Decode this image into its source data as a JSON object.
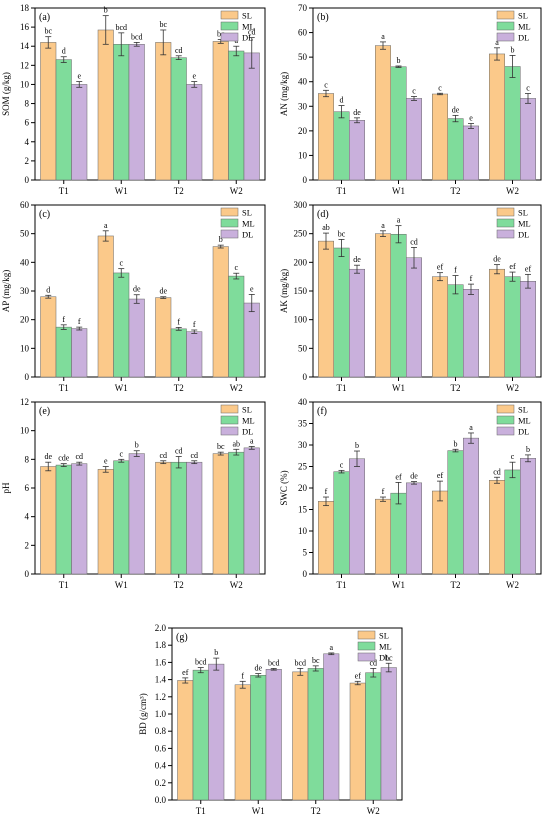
{
  "colors": {
    "SL": "#fbc98a",
    "ML": "#7fdc9b",
    "DL": "#c9b0dc"
  },
  "chart_data": [
    {
      "type": "bar",
      "panel": "(a)",
      "ylabel": "SOM (g/kg)",
      "ylim": [
        0,
        18
      ],
      "yticks": [
        0,
        2,
        4,
        6,
        8,
        10,
        12,
        14,
        16,
        18
      ],
      "categories": [
        "T1",
        "W1",
        "T2",
        "W2"
      ],
      "legend": "top-right",
      "series": [
        {
          "name": "SL",
          "values": [
            14.4,
            15.7,
            14.4,
            14.5
          ],
          "errors": [
            0.6,
            1.5,
            1.3,
            0.2
          ],
          "labels": [
            "bc",
            "b",
            "bc",
            "bc"
          ]
        },
        {
          "name": "ML",
          "values": [
            12.6,
            14.2,
            12.8,
            13.5
          ],
          "errors": [
            0.3,
            1.2,
            0.2,
            0.5
          ],
          "labels": [
            "d",
            "bcd",
            "cd",
            "a"
          ]
        },
        {
          "name": "DL",
          "values": [
            10.0,
            14.2,
            10.0,
            13.3
          ],
          "errors": [
            0.3,
            0.2,
            0.3,
            1.6
          ],
          "labels": [
            "e",
            "bcd",
            "e",
            "cd"
          ]
        }
      ]
    },
    {
      "type": "bar",
      "panel": "(b)",
      "ylabel": "AN (mg/kg)",
      "ylim": [
        0,
        70
      ],
      "yticks": [
        0,
        10,
        20,
        30,
        40,
        50,
        60,
        70
      ],
      "categories": [
        "T1",
        "W1",
        "T2",
        "W2"
      ],
      "legend": "top-right",
      "series": [
        {
          "name": "SL",
          "values": [
            35.2,
            54.7,
            35.0,
            51.3
          ],
          "errors": [
            1.3,
            1.5,
            0.3,
            2.5
          ],
          "labels": [
            "c",
            "a",
            "c",
            "a"
          ]
        },
        {
          "name": "ML",
          "values": [
            27.8,
            46.1,
            25.0,
            46.2
          ],
          "errors": [
            2.5,
            0.3,
            1.3,
            4.5
          ],
          "labels": [
            "d",
            "b",
            "de",
            "b"
          ]
        },
        {
          "name": "DL",
          "values": [
            24.3,
            33.2,
            22.0,
            33.2
          ],
          "errors": [
            1.0,
            0.8,
            1.0,
            2.0
          ],
          "labels": [
            "de",
            "c",
            "e",
            "c"
          ]
        }
      ]
    },
    {
      "type": "bar",
      "panel": "(c)",
      "ylabel": "AP (mg/kg)",
      "ylim": [
        0,
        60
      ],
      "yticks": [
        0,
        10,
        20,
        30,
        40,
        50,
        60
      ],
      "categories": [
        "T1",
        "W1",
        "T2",
        "W2"
      ],
      "legend": "top-right",
      "series": [
        {
          "name": "SL",
          "values": [
            28.0,
            49.2,
            27.7,
            45.5
          ],
          "errors": [
            0.5,
            1.8,
            0.3,
            0.5
          ],
          "labels": [
            "d",
            "a",
            "de",
            "b"
          ]
        },
        {
          "name": "ML",
          "values": [
            17.4,
            36.3,
            16.8,
            35.2
          ],
          "errors": [
            0.8,
            1.5,
            0.5,
            1.0
          ],
          "labels": [
            "f",
            "c",
            "f",
            "c"
          ]
        },
        {
          "name": "DL",
          "values": [
            16.9,
            27.2,
            15.8,
            25.8
          ],
          "errors": [
            0.5,
            1.5,
            0.6,
            3.0
          ],
          "labels": [
            "f",
            "de",
            "f",
            "e"
          ]
        }
      ]
    },
    {
      "type": "bar",
      "panel": "(d)",
      "ylabel": "AK (mg/kg)",
      "ylim": [
        0,
        300
      ],
      "yticks": [
        0,
        50,
        100,
        150,
        200,
        250,
        300
      ],
      "categories": [
        "T1",
        "W1",
        "T2",
        "W2"
      ],
      "legend": "top-right",
      "series": [
        {
          "name": "SL",
          "values": [
            237,
            250,
            175,
            188
          ],
          "errors": [
            14,
            5,
            7,
            8
          ],
          "labels": [
            "ab",
            "a",
            "ef",
            "de"
          ]
        },
        {
          "name": "ML",
          "values": [
            225,
            249,
            161,
            175
          ],
          "errors": [
            15,
            15,
            16,
            8
          ],
          "labels": [
            "bc",
            "a",
            "f",
            "ef"
          ]
        },
        {
          "name": "DL",
          "values": [
            188,
            208,
            153,
            167
          ],
          "errors": [
            7,
            18,
            9,
            12
          ],
          "labels": [
            "de",
            "cd",
            "f",
            "ef"
          ]
        }
      ]
    },
    {
      "type": "bar",
      "panel": "(e)",
      "ylabel": "pH",
      "ylim": [
        0,
        12
      ],
      "yticks": [
        0,
        2,
        4,
        6,
        8,
        10,
        12
      ],
      "categories": [
        "T1",
        "W1",
        "T2",
        "W2"
      ],
      "legend": "top-right",
      "series": [
        {
          "name": "SL",
          "values": [
            7.5,
            7.3,
            7.8,
            8.4
          ],
          "errors": [
            0.3,
            0.2,
            0.1,
            0.1
          ],
          "labels": [
            "de",
            "e",
            "cd",
            "bc"
          ]
        },
        {
          "name": "ML",
          "values": [
            7.6,
            7.9,
            7.8,
            8.5
          ],
          "errors": [
            0.1,
            0.1,
            0.4,
            0.2
          ],
          "labels": [
            "cde",
            "c",
            "cd",
            "ab"
          ]
        },
        {
          "name": "DL",
          "values": [
            7.7,
            8.4,
            7.8,
            8.8
          ],
          "errors": [
            0.1,
            0.2,
            0.1,
            0.1
          ],
          "labels": [
            "cd",
            "b",
            "cd",
            "a"
          ]
        }
      ]
    },
    {
      "type": "bar",
      "panel": "(f)",
      "ylabel": "SWC (%)",
      "ylim": [
        0,
        40
      ],
      "yticks": [
        0,
        5,
        10,
        15,
        20,
        25,
        30,
        35,
        40
      ],
      "categories": [
        "T1",
        "W1",
        "T2",
        "W2"
      ],
      "legend": "top-right",
      "series": [
        {
          "name": "SL",
          "values": [
            16.9,
            17.4,
            19.3,
            21.8
          ],
          "errors": [
            1.0,
            0.5,
            2.3,
            0.7
          ],
          "labels": [
            "f",
            "f",
            "ef",
            "cd"
          ]
        },
        {
          "name": "ML",
          "values": [
            23.8,
            18.8,
            28.7,
            24.2
          ],
          "errors": [
            0.3,
            2.5,
            0.3,
            1.8
          ],
          "labels": [
            "c",
            "ef",
            "b",
            "c"
          ]
        },
        {
          "name": "DL",
          "values": [
            26.8,
            21.2,
            31.6,
            26.9
          ],
          "errors": [
            1.8,
            0.3,
            1.2,
            0.8
          ],
          "labels": [
            "b",
            "de",
            "a",
            "b"
          ]
        }
      ]
    },
    {
      "type": "bar",
      "panel": "(g)",
      "ylabel": "BD (g/cm³)",
      "ylim": [
        0,
        2.0
      ],
      "yticks": [
        0,
        0.2,
        0.4,
        0.6,
        0.8,
        1.0,
        1.2,
        1.4,
        1.6,
        1.8,
        2.0
      ],
      "categories": [
        "T1",
        "W1",
        "T2",
        "W2"
      ],
      "legend": "top-right",
      "series": [
        {
          "name": "SL",
          "values": [
            1.39,
            1.34,
            1.49,
            1.36
          ],
          "errors": [
            0.03,
            0.04,
            0.04,
            0.02
          ],
          "labels": [
            "ef",
            "f",
            "bcd",
            "ef"
          ]
        },
        {
          "name": "ML",
          "values": [
            1.51,
            1.45,
            1.53,
            1.48
          ],
          "errors": [
            0.03,
            0.02,
            0.03,
            0.05
          ],
          "labels": [
            "bcd",
            "de",
            "bc",
            "cd"
          ]
        },
        {
          "name": "DL",
          "values": [
            1.58,
            1.52,
            1.7,
            1.54
          ],
          "errors": [
            0.07,
            0.01,
            0.01,
            0.05
          ],
          "labels": [
            "b",
            "bcd",
            "a",
            "bc"
          ]
        }
      ]
    }
  ]
}
